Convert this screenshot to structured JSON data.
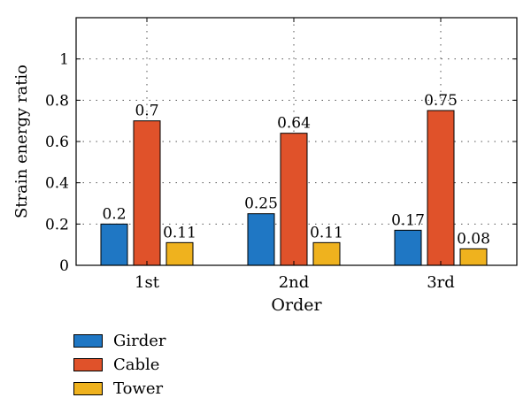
{
  "chart_data": {
    "type": "bar",
    "categories": [
      "1st",
      "2nd",
      "3rd"
    ],
    "series": [
      {
        "name": "Girder",
        "values": [
          0.2,
          0.25,
          0.17
        ],
        "labels": [
          "0.2",
          "0.25",
          "0.17"
        ],
        "color": "#1f77c4"
      },
      {
        "name": "Cable",
        "values": [
          0.7,
          0.64,
          0.75
        ],
        "labels": [
          "0.7",
          "0.64",
          "0.75"
        ],
        "color": "#e0522a"
      },
      {
        "name": "Tower",
        "values": [
          0.11,
          0.11,
          0.08
        ],
        "labels": [
          "0.11",
          "0.11",
          "0.08"
        ],
        "color": "#efb21e"
      }
    ],
    "xlabel": "Order",
    "ylabel": "Strain energy ratio",
    "ylim": [
      0,
      1.2
    ],
    "yticks": [
      0,
      0.2,
      0.4,
      0.6,
      0.8,
      1
    ],
    "ytick_labels": [
      "0",
      "0.2",
      "0.4",
      "0.6",
      "0.8",
      "1"
    ],
    "grid": "dotted",
    "legend_position": "bottom-left, below plot"
  }
}
